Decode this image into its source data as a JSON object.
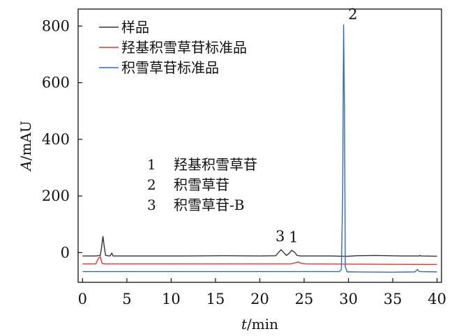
{
  "chart_data": {
    "type": "line",
    "xlabel_italic": "t",
    "xlabel_rest": "/min",
    "ylabel_italic": "A",
    "ylabel_rest": "/mAU",
    "xlim": [
      -0.5,
      40.5
    ],
    "ylim": [
      -105,
      860
    ],
    "xticks": [
      0,
      5,
      10,
      15,
      20,
      25,
      30,
      35,
      40
    ],
    "yticks": [
      0,
      200,
      400,
      600,
      800
    ],
    "legend_position": "top-left",
    "series": [
      {
        "name": "样品",
        "color": "#333333",
        "points": [
          [
            0,
            -12
          ],
          [
            1.5,
            -12
          ],
          [
            2,
            -10
          ],
          [
            2.15,
            20
          ],
          [
            2.3,
            58
          ],
          [
            2.45,
            20
          ],
          [
            2.6,
            -10
          ],
          [
            3.1,
            -12
          ],
          [
            3.3,
            -2
          ],
          [
            3.45,
            -12
          ],
          [
            8,
            -12
          ],
          [
            12,
            -12
          ],
          [
            16,
            -11
          ],
          [
            20,
            -12
          ],
          [
            21.8,
            -11
          ],
          [
            22.1,
            0
          ],
          [
            22.4,
            10
          ],
          [
            22.7,
            0
          ],
          [
            23,
            -10
          ],
          [
            23.3,
            -3
          ],
          [
            23.6,
            8
          ],
          [
            23.9,
            2
          ],
          [
            24.2,
            -10
          ],
          [
            24.6,
            -12
          ],
          [
            28,
            -12
          ],
          [
            29.2,
            -13
          ],
          [
            29.4,
            -13
          ],
          [
            30,
            -13
          ],
          [
            31,
            -11
          ],
          [
            33,
            -10
          ],
          [
            36,
            -12
          ],
          [
            38,
            -12
          ],
          [
            38.1,
            -10
          ],
          [
            38.2,
            -12
          ],
          [
            40,
            -13
          ]
        ]
      },
      {
        "name": "羟基积雪草苷标准品",
        "color": "#e8352b",
        "points": [
          [
            0,
            -40
          ],
          [
            1.5,
            -40
          ],
          [
            1.8,
            -20
          ],
          [
            2,
            -15
          ],
          [
            2.2,
            -38
          ],
          [
            2.5,
            -40
          ],
          [
            23.5,
            -40
          ],
          [
            24,
            -36
          ],
          [
            24.3,
            -33
          ],
          [
            24.7,
            -38
          ],
          [
            25.2,
            -40
          ],
          [
            40,
            -42
          ]
        ]
      },
      {
        "name": "积雪草苷标准品",
        "color": "#2f6bc3",
        "points": [
          [
            0,
            -67
          ],
          [
            29,
            -67
          ],
          [
            29.2,
            -60
          ],
          [
            29.35,
            200
          ],
          [
            29.45,
            805
          ],
          [
            29.55,
            500
          ],
          [
            29.65,
            -50
          ],
          [
            29.85,
            -68
          ],
          [
            30.5,
            -68
          ],
          [
            35,
            -69
          ],
          [
            37.5,
            -68
          ],
          [
            37.8,
            -60
          ],
          [
            38,
            -67
          ],
          [
            40,
            -68
          ]
        ]
      }
    ],
    "peak_labels": [
      {
        "text": "3",
        "x": 22.3,
        "y": 20
      },
      {
        "text": "1",
        "x": 23.8,
        "y": 17
      },
      {
        "text": "2",
        "x": 30.5,
        "y": 805
      }
    ],
    "annotation_lines": [
      {
        "num": "1",
        "text": "羟基积雪草苷"
      },
      {
        "num": "2",
        "text": "积雪草苷"
      },
      {
        "num": "3",
        "text": "积雪草苷-B"
      }
    ],
    "grid": false
  }
}
